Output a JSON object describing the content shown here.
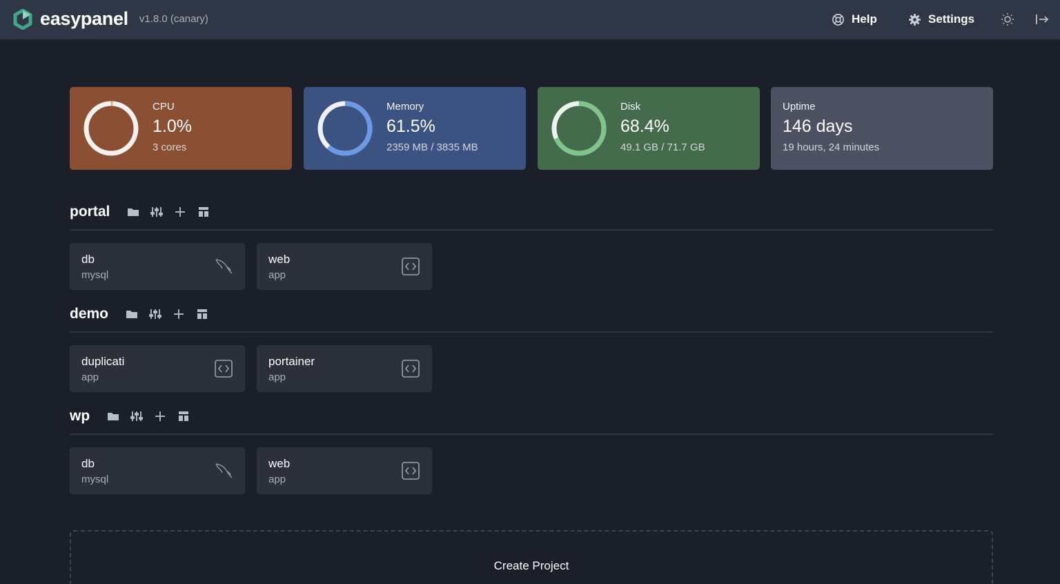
{
  "header": {
    "brand": "easypanel",
    "version": "v1.8.0 (canary)",
    "help_label": "Help",
    "settings_label": "Settings",
    "accent": "#3fa68a"
  },
  "stats": {
    "cpu": {
      "label": "CPU",
      "value": "1.0%",
      "sub": "3 cores",
      "percent": 1.0,
      "color": "#f0a868"
    },
    "memory": {
      "label": "Memory",
      "value": "61.5%",
      "sub": "2359 MB / 3835 MB",
      "percent": 61.5,
      "color": "#6a9ae6"
    },
    "disk": {
      "label": "Disk",
      "value": "68.4%",
      "sub": "49.1 GB / 71.7 GB",
      "percent": 68.4,
      "color": "#7fc48a"
    },
    "uptime": {
      "label": "Uptime",
      "value": "146 days",
      "sub": "19 hours, 24 minutes"
    }
  },
  "projects": [
    {
      "name": "portal",
      "services": [
        {
          "name": "db",
          "type": "mysql",
          "icon": "mysql-dolphin-icon"
        },
        {
          "name": "web",
          "type": "app",
          "icon": "code-icon"
        }
      ]
    },
    {
      "name": "demo",
      "services": [
        {
          "name": "duplicati",
          "type": "app",
          "icon": "code-icon"
        },
        {
          "name": "portainer",
          "type": "app",
          "icon": "code-icon"
        }
      ]
    },
    {
      "name": "wp",
      "services": [
        {
          "name": "db",
          "type": "mysql",
          "icon": "mysql-dolphin-icon"
        },
        {
          "name": "web",
          "type": "app",
          "icon": "code-icon"
        }
      ]
    }
  ],
  "create_project_label": "Create Project"
}
